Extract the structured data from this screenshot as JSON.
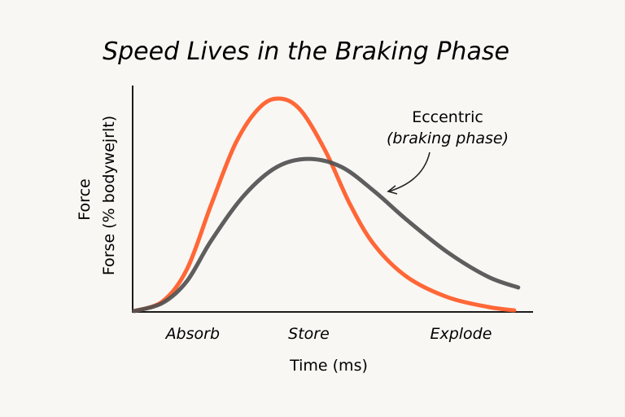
{
  "chart_data": {
    "type": "line",
    "title": "Speed Lives in the Braking Phase",
    "xlabel": "Time (ms)",
    "ylabel_lines": [
      "Force",
      "Forse (% bodywejrlt)"
    ],
    "xlim": [
      0,
      100
    ],
    "ylim": [
      0,
      100
    ],
    "grid": false,
    "category_labels": [
      {
        "text": "Absorb",
        "x": 15
      },
      {
        "text": "Store",
        "x": 44
      },
      {
        "text": "Explode",
        "x": 82
      }
    ],
    "annotation": {
      "lines": [
        "Eccentric",
        "(braking phase)"
      ],
      "target": "gray-curve"
    },
    "series": [
      {
        "color": "#ff5a26",
        "x": [
          0.4,
          7.5,
          13.6,
          19.7,
          25.8,
          31.9,
          37,
          42.1,
          48.2,
          54.3,
          60.4,
          68.5,
          78.7,
          88.8,
          95.3
        ],
        "y": [
          0.4,
          4.7,
          19,
          47.8,
          74.8,
          90.6,
          94.2,
          88.8,
          70.9,
          47.5,
          29.5,
          15.5,
          6.5,
          2.2,
          0.7
        ]
      },
      {
        "color": "#505050",
        "x": [
          0.4,
          7.5,
          13.6,
          19.7,
          27.8,
          36,
          43.9,
          52.2,
          60.4,
          68.5,
          78.7,
          88.8,
          96.3
        ],
        "y": [
          0.4,
          4,
          13.7,
          31.7,
          51.4,
          64,
          67.6,
          64,
          53.2,
          40.6,
          26.3,
          15.5,
          10.8
        ]
      }
    ]
  }
}
